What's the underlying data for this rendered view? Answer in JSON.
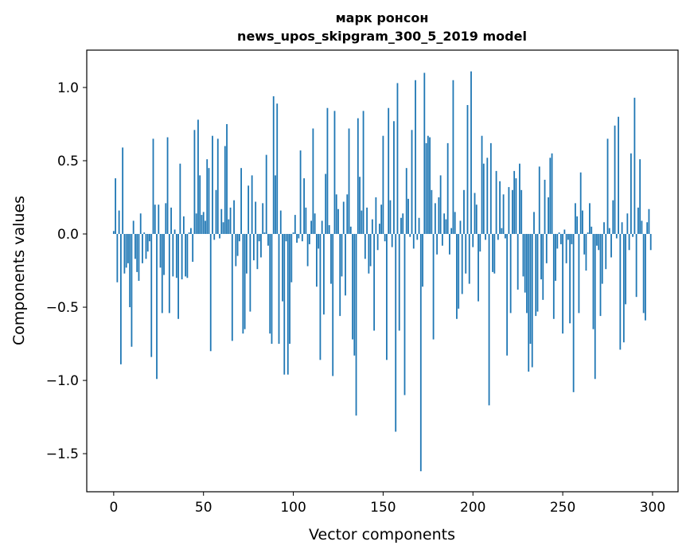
{
  "chart_data": {
    "type": "bar",
    "title": "марк ронсон",
    "subtitle": "news_upos_skipgram_300_5_2019 model",
    "xlabel": "Vector components",
    "ylabel": "Components values",
    "xlim": [
      -15,
      314.2
    ],
    "ylim": [
      -1.76,
      1.255
    ],
    "xticks": [
      0,
      50,
      100,
      150,
      200,
      250,
      300
    ],
    "xtick_labels": [
      "0",
      "50",
      "100",
      "150",
      "200",
      "250",
      "300"
    ],
    "yticks": [
      -1.5,
      -1.0,
      -0.5,
      0.0,
      0.5,
      1.0
    ],
    "ytick_labels": [
      "−1.5",
      "−1.0",
      "−0.5",
      "0.0",
      "0.5",
      "1.0"
    ],
    "grid": false,
    "bar_color": "#1f77b4",
    "values": [
      0.02,
      0.38,
      -0.33,
      0.16,
      -0.89,
      0.59,
      -0.27,
      -0.23,
      -0.2,
      -0.5,
      -0.77,
      0.09,
      -0.17,
      -0.26,
      -0.32,
      0.14,
      -0.2,
      0.01,
      -0.17,
      -0.12,
      -0.05,
      -0.84,
      0.65,
      0.2,
      -0.99,
      0.2,
      -0.23,
      -0.54,
      -0.28,
      0.21,
      0.66,
      -0.54,
      0.18,
      -0.29,
      0.03,
      -0.3,
      -0.58,
      0.48,
      -0.31,
      0.12,
      -0.29,
      -0.3,
      0.01,
      0.04,
      -0.19,
      0.71,
      0.14,
      0.78,
      0.4,
      0.13,
      0.15,
      0.09,
      0.51,
      0.45,
      -0.8,
      0.67,
      -0.04,
      0.3,
      0.65,
      -0.03,
      0.17,
      0.08,
      0.6,
      0.75,
      0.1,
      0.18,
      -0.73,
      0.23,
      -0.22,
      -0.15,
      -0.05,
      0.45,
      -0.68,
      -0.65,
      -0.27,
      0.33,
      -0.53,
      0.4,
      -0.18,
      0.22,
      -0.24,
      -0.05,
      -0.16,
      0.21,
      0.01,
      0.54,
      -0.08,
      -0.68,
      -0.75,
      0.94,
      0.4,
      0.89,
      -0.75,
      0.16,
      -0.46,
      -0.96,
      -0.05,
      -0.96,
      -0.75,
      -0.33,
      0.01,
      0.13,
      -0.06,
      -0.03,
      0.57,
      -0.05,
      0.38,
      0.18,
      -0.22,
      -0.07,
      0.09,
      0.72,
      0.14,
      -0.36,
      -0.1,
      -0.86,
      0.09,
      -0.55,
      0.41,
      0.86,
      0.06,
      -0.34,
      -0.97,
      0.84,
      0.27,
      0.17,
      -0.56,
      -0.29,
      0.22,
      -0.42,
      0.27,
      0.72,
      0.05,
      -0.72,
      -0.83,
      -1.24,
      0.79,
      0.39,
      0.16,
      0.84,
      -0.17,
      0.18,
      -0.27,
      -0.22,
      0.1,
      -0.66,
      0.25,
      -0.11,
      0.07,
      0.2,
      0.67,
      -0.05,
      -0.86,
      0.86,
      0.23,
      -0.09,
      0.77,
      -1.35,
      1.03,
      -0.66,
      0.11,
      0.14,
      -1.1,
      0.45,
      0.24,
      -0.02,
      0.71,
      -0.1,
      1.05,
      -0.04,
      0.11,
      -1.62,
      -0.36,
      1.1,
      0.62,
      0.67,
      0.66,
      0.3,
      -0.72,
      0.21,
      -0.14,
      0.25,
      0.4,
      -0.08,
      0.14,
      0.1,
      0.62,
      -0.14,
      0.04,
      1.05,
      0.15,
      -0.58,
      -0.51,
      0.09,
      -0.41,
      0.3,
      -0.27,
      0.88,
      -0.34,
      1.11,
      -0.09,
      0.28,
      0.2,
      -0.46,
      -0.12,
      0.67,
      0.48,
      -0.04,
      0.52,
      -1.17,
      0.62,
      -0.26,
      -0.27,
      0.43,
      -0.04,
      0.36,
      0.04,
      0.27,
      -0.03,
      -0.83,
      0.32,
      -0.54,
      0.3,
      0.43,
      0.38,
      -0.38,
      0.48,
      0.3,
      -0.29,
      -0.4,
      -0.54,
      -0.94,
      -0.75,
      -0.91,
      0.15,
      -0.56,
      -0.53,
      0.46,
      -0.31,
      -0.45,
      0.37,
      -0.2,
      0.25,
      0.52,
      0.55,
      -0.58,
      -0.32,
      -0.1,
      0.01,
      -0.07,
      -0.68,
      0.03,
      -0.2,
      -0.04,
      -0.61,
      -0.07,
      -1.08,
      0.21,
      0.12,
      -0.54,
      0.42,
      0.16,
      -0.14,
      -0.25,
      0.01,
      0.21,
      0.05,
      -0.65,
      -0.99,
      -0.08,
      -0.11,
      -0.56,
      -0.34,
      0.08,
      -0.24,
      0.65,
      0.04,
      -0.16,
      0.23,
      0.74,
      -0.03,
      0.8,
      -0.79,
      0.08,
      -0.74,
      -0.48,
      0.14,
      -0.11,
      0.55,
      -0.02,
      0.93,
      -0.43,
      0.18,
      0.51,
      0.09,
      -0.54,
      -0.59,
      0.08,
      0.17,
      -0.11
    ]
  }
}
